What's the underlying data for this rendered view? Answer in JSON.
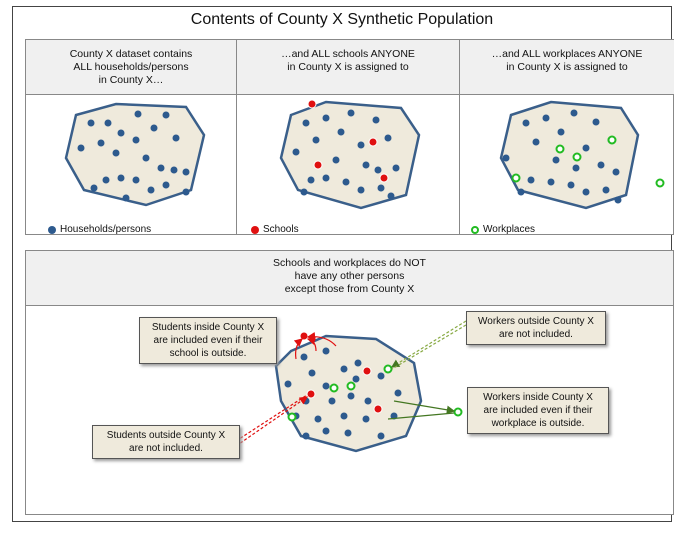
{
  "title": "Contents of  County X Synthetic Population",
  "top": {
    "columns": [
      {
        "lines": [
          "County X dataset contains",
          "ALL households/persons",
          "in County  X…"
        ],
        "legend": "Households/persons"
      },
      {
        "lines": [
          "…and ALL schools ANYONE",
          "in County X is assigned to"
        ],
        "legend": "Schools"
      },
      {
        "lines": [
          "…and ALL workplaces ANYONE",
          "in County X is assigned to"
        ],
        "legend": "Workplaces"
      }
    ]
  },
  "bottom": {
    "header": [
      "Schools and workplaces do NOT",
      "have any other persons",
      "except those from County X"
    ],
    "notes": {
      "students_inside": [
        "Students  inside County X",
        "are included even if their",
        "school is outside."
      ],
      "students_outside": [
        "Students outside County X",
        "are not included."
      ],
      "workers_outside": [
        "Workers  outside County X",
        "are not included."
      ],
      "workers_inside": [
        "Workers  inside County X",
        "are included even if their",
        "workplace is outside."
      ]
    }
  },
  "colors": {
    "household": "#2d5a8e",
    "school": "#e01010",
    "workplace": "#22bb22",
    "region_fill": "#efeadc",
    "region_stroke": "#3a5f8a"
  }
}
